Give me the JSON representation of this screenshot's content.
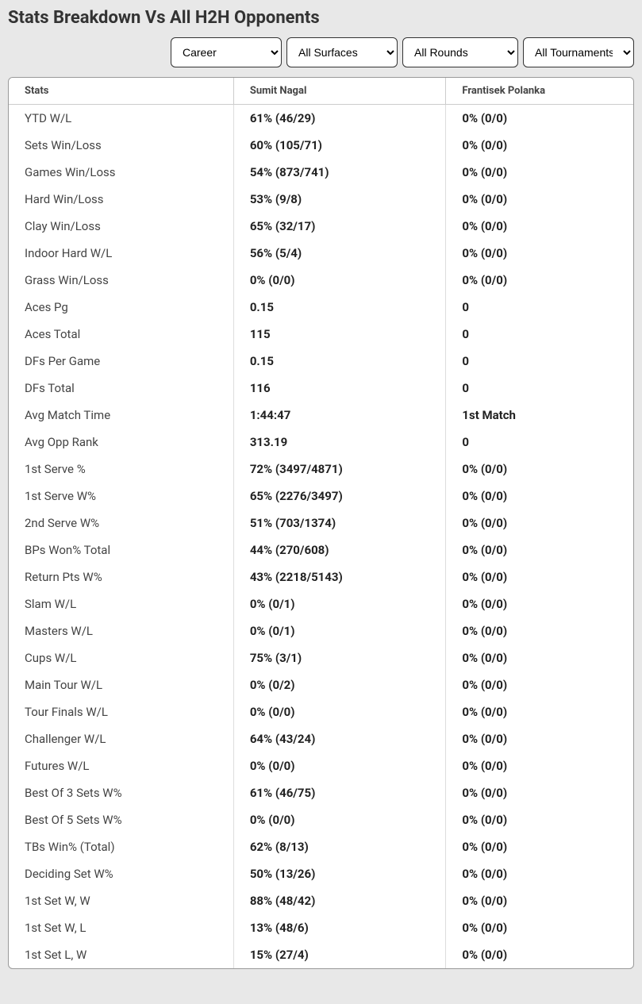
{
  "title": "Stats Breakdown Vs All H2H Opponents",
  "filters": {
    "period": {
      "selected": "Career"
    },
    "surface": {
      "selected": "All Surfaces"
    },
    "round": {
      "selected": "All Rounds"
    },
    "tournament": {
      "selected": "All Tournaments"
    }
  },
  "table": {
    "columns": [
      "Stats",
      "Sumit Nagal",
      "Frantisek Polanka"
    ],
    "rows": [
      [
        "YTD W/L",
        "61% (46/29)",
        "0% (0/0)"
      ],
      [
        "Sets Win/Loss",
        "60% (105/71)",
        "0% (0/0)"
      ],
      [
        "Games Win/Loss",
        "54% (873/741)",
        "0% (0/0)"
      ],
      [
        "Hard Win/Loss",
        "53% (9/8)",
        "0% (0/0)"
      ],
      [
        "Clay Win/Loss",
        "65% (32/17)",
        "0% (0/0)"
      ],
      [
        "Indoor Hard W/L",
        "56% (5/4)",
        "0% (0/0)"
      ],
      [
        "Grass Win/Loss",
        "0% (0/0)",
        "0% (0/0)"
      ],
      [
        "Aces Pg",
        "0.15",
        "0"
      ],
      [
        "Aces Total",
        "115",
        "0"
      ],
      [
        "DFs Per Game",
        "0.15",
        "0"
      ],
      [
        "DFs Total",
        "116",
        "0"
      ],
      [
        "Avg Match Time",
        "1:44:47",
        "1st Match"
      ],
      [
        "Avg Opp Rank",
        "313.19",
        "0"
      ],
      [
        "1st Serve %",
        "72% (3497/4871)",
        "0% (0/0)"
      ],
      [
        "1st Serve W%",
        "65% (2276/3497)",
        "0% (0/0)"
      ],
      [
        "2nd Serve W%",
        "51% (703/1374)",
        "0% (0/0)"
      ],
      [
        "BPs Won% Total",
        "44% (270/608)",
        "0% (0/0)"
      ],
      [
        "Return Pts W%",
        "43% (2218/5143)",
        "0% (0/0)"
      ],
      [
        "Slam W/L",
        "0% (0/1)",
        "0% (0/0)"
      ],
      [
        "Masters W/L",
        "0% (0/1)",
        "0% (0/0)"
      ],
      [
        "Cups W/L",
        "75% (3/1)",
        "0% (0/0)"
      ],
      [
        "Main Tour W/L",
        "0% (0/2)",
        "0% (0/0)"
      ],
      [
        "Tour Finals W/L",
        "0% (0/0)",
        "0% (0/0)"
      ],
      [
        "Challenger W/L",
        "64% (43/24)",
        "0% (0/0)"
      ],
      [
        "Futures W/L",
        "0% (0/0)",
        "0% (0/0)"
      ],
      [
        "Best Of 3 Sets W%",
        "61% (46/75)",
        "0% (0/0)"
      ],
      [
        "Best Of 5 Sets W%",
        "0% (0/0)",
        "0% (0/0)"
      ],
      [
        "TBs Win% (Total)",
        "62% (8/13)",
        "0% (0/0)"
      ],
      [
        "Deciding Set W%",
        "50% (13/26)",
        "0% (0/0)"
      ],
      [
        "1st Set W, W",
        "88% (48/42)",
        "0% (0/0)"
      ],
      [
        "1st Set W, L",
        "13% (48/6)",
        "0% (0/0)"
      ],
      [
        "1st Set L, W",
        "15% (27/4)",
        "0% (0/0)"
      ]
    ]
  },
  "styling": {
    "background_color": "#e8e8e8",
    "table_background": "#ffffff",
    "border_color": "#999999",
    "header_text_color": "#444444",
    "stat_label_color": "#444444",
    "value_color": "#222222",
    "title_fontsize": 22,
    "header_fontsize": 13,
    "cell_fontsize": 15
  }
}
